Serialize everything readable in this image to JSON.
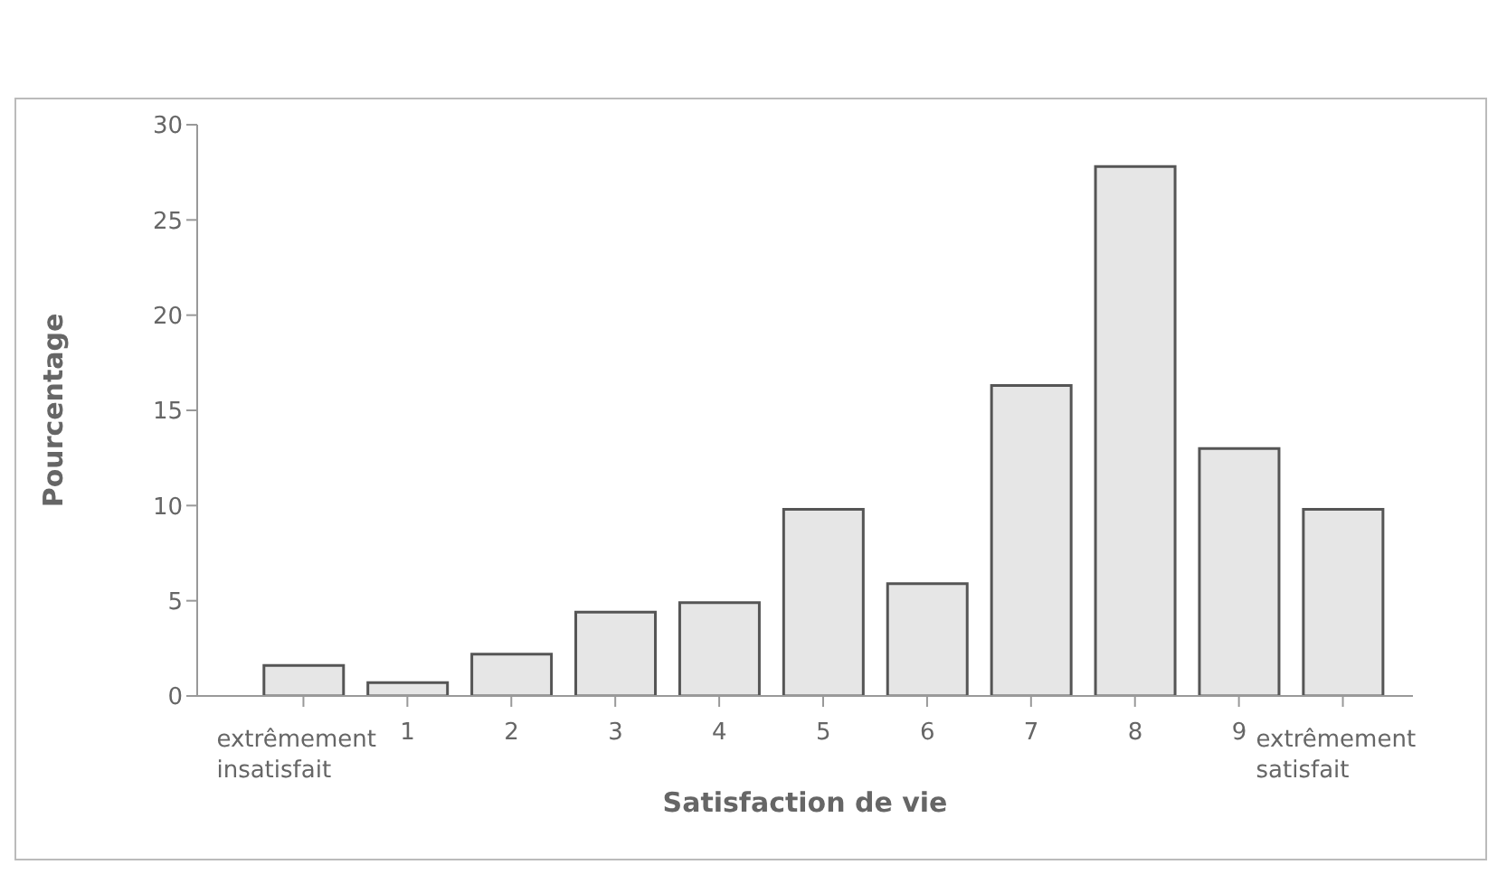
{
  "chart_data": {
    "type": "bar",
    "xlabel": "Satisfaction de vie",
    "ylabel": "Pourcentage",
    "categories": [
      "extrêmement insatisfait",
      "1",
      "2",
      "3",
      "4",
      "5",
      "6",
      "7",
      "8",
      "9",
      "extrêmement satisfait"
    ],
    "values": [
      1.6,
      0.7,
      2.2,
      4.4,
      4.9,
      9.8,
      5.9,
      16.3,
      27.8,
      13.0,
      9.8
    ],
    "color": "#e6e6e6",
    "ylim": [
      0,
      30
    ],
    "yticks": [
      0,
      5,
      10,
      15,
      20,
      25,
      30
    ],
    "grid": false
  }
}
